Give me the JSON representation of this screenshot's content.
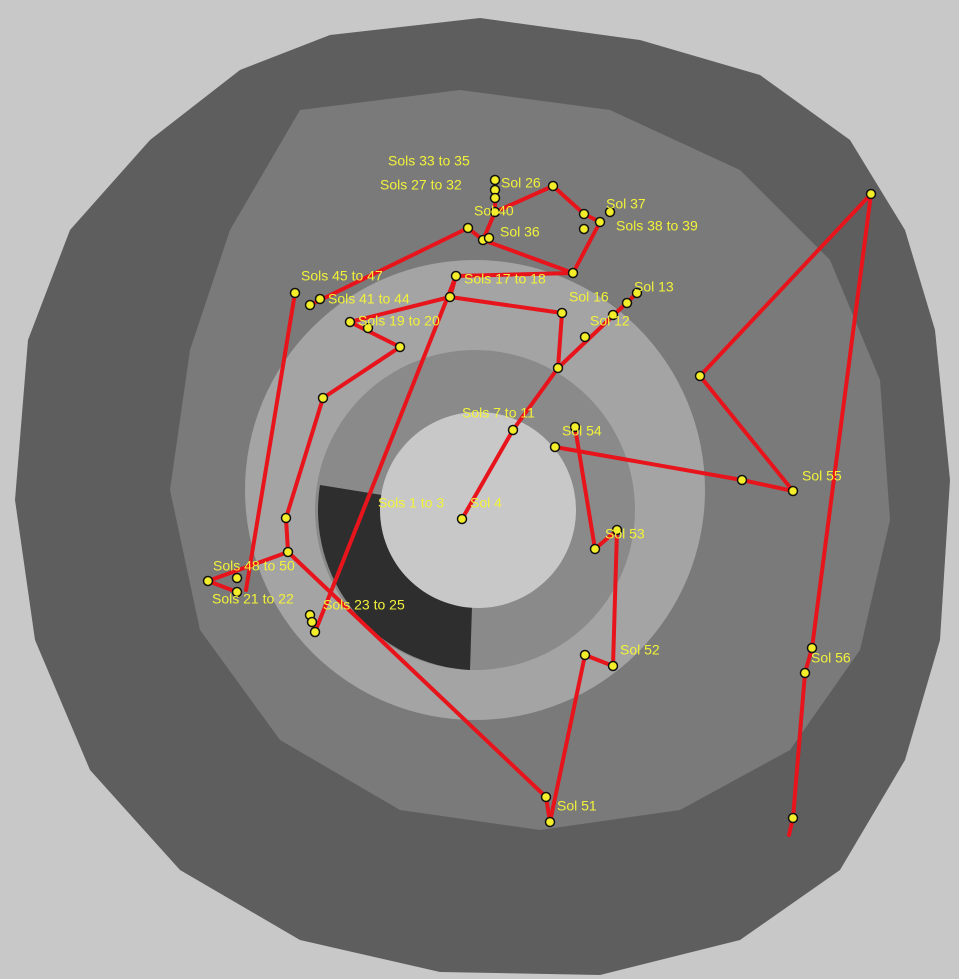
{
  "labels": [
    "Sols 33 to 35",
    "Sols 27 to 32",
    "Sol 26",
    "Sol 37",
    "Sols 38 to 39",
    "Sol 40",
    "Sol 36",
    "Sols 17 to 18",
    "Sols 45 to 47",
    "Sols 41 to 44",
    "Sol 16",
    "Sol 13",
    "Sols 19 to 20",
    "Sol 12",
    "Sols 7 to 11",
    "Sol 54",
    "Sol 55",
    "Sols 1 to 3",
    "Sol 4",
    "Sol 53",
    "Sols 48 to 50",
    "Sols 21 to 22",
    "Sols 23 to 25",
    "Sol 52",
    "Sol 56",
    "Sol 51"
  ]
}
